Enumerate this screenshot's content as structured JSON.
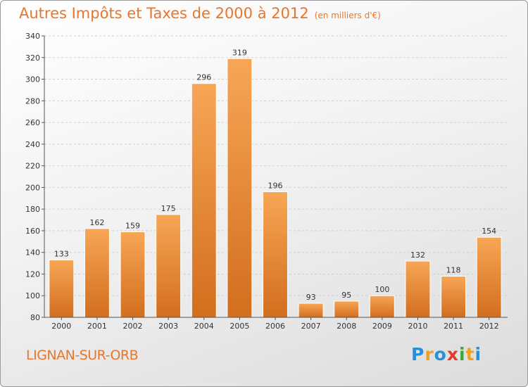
{
  "header": {
    "title": "Autres Impôts et Taxes de 2000 à 2012",
    "subtitle": "(en milliers d'€)"
  },
  "footer": {
    "town": "LIGNAN-SUR-ORB",
    "logo_letters": [
      "P",
      "r",
      "o",
      "x",
      "i",
      "t",
      "i"
    ],
    "logo_colors": [
      "#2b8fd6",
      "#f0a020",
      "#2b8fd6",
      "#e53a2a",
      "#3aa83a",
      "#f0a020",
      "#2b8fd6"
    ]
  },
  "chart_data": {
    "type": "bar",
    "categories": [
      "2000",
      "2001",
      "2002",
      "2003",
      "2004",
      "2005",
      "2006",
      "2007",
      "2008",
      "2009",
      "2010",
      "2011",
      "2012"
    ],
    "values": [
      133,
      162,
      159,
      175,
      296,
      319,
      196,
      93,
      95,
      100,
      132,
      118,
      154
    ],
    "title": "Autres Impôts et Taxes de 2000 à 2012",
    "ylim": [
      80,
      340
    ],
    "yticks": [
      80,
      100,
      120,
      140,
      160,
      180,
      200,
      220,
      240,
      260,
      280,
      300,
      320,
      340
    ],
    "grid": true,
    "bar_color": "#f0903a"
  }
}
